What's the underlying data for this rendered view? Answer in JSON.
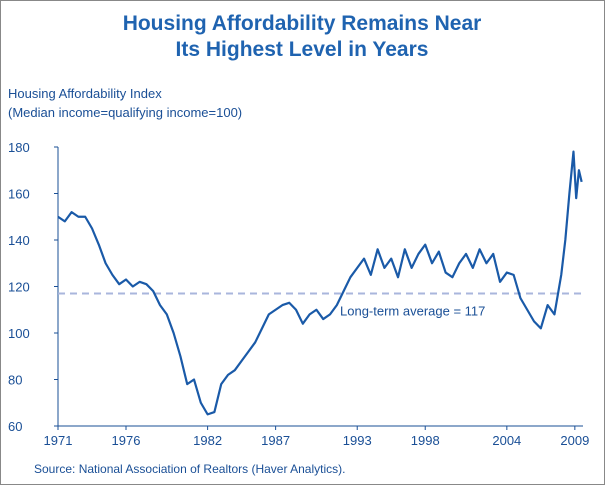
{
  "chart_data": {
    "type": "line",
    "title": [
      "Housing Affordability Remains Near",
      "Its Highest Level in Years"
    ],
    "ylabel": [
      "Housing Affordability Index",
      "(Median income=qualifying income=100)"
    ],
    "source": "Source: National Association of Realtors (Haver Analytics).",
    "annotation": {
      "text": "Long-term average = 117",
      "value": 117,
      "color": "#a9b6dc"
    },
    "x": [
      1971,
      1971.5,
      1972,
      1972.5,
      1973,
      1973.5,
      1974,
      1974.5,
      1975,
      1975.5,
      1976,
      1976.5,
      1977,
      1977.5,
      1978,
      1978.5,
      1979,
      1979.5,
      1980,
      1980.5,
      1981,
      1981.5,
      1982,
      1982.5,
      1983,
      1983.5,
      1984,
      1984.5,
      1985,
      1985.5,
      1986,
      1986.5,
      1987,
      1987.5,
      1988,
      1988.5,
      1989,
      1989.5,
      1990,
      1990.5,
      1991,
      1991.5,
      1992,
      1992.5,
      1993,
      1993.5,
      1994,
      1994.5,
      1995,
      1995.5,
      1996,
      1996.5,
      1997,
      1997.5,
      1998,
      1998.5,
      1999,
      1999.5,
      2000,
      2000.5,
      2001,
      2001.5,
      2002,
      2002.5,
      2003,
      2003.5,
      2004,
      2004.5,
      2005,
      2005.5,
      2006,
      2006.5,
      2007,
      2007.5,
      2008,
      2008.3,
      2008.6,
      2008.9,
      2009.1,
      2009.3,
      2009.5
    ],
    "series": [
      {
        "name": "Housing Affordability Index",
        "color": "#1a5aa8",
        "values": [
          150,
          148,
          152,
          150,
          150,
          145,
          138,
          130,
          125,
          121,
          123,
          120,
          122,
          121,
          118,
          112,
          108,
          100,
          90,
          78,
          80,
          70,
          65,
          66,
          78,
          82,
          84,
          88,
          92,
          96,
          102,
          108,
          110,
          112,
          113,
          110,
          104,
          108,
          110,
          106,
          108,
          112,
          118,
          124,
          128,
          132,
          125,
          136,
          128,
          132,
          124,
          136,
          128,
          134,
          138,
          130,
          135,
          126,
          124,
          130,
          134,
          128,
          136,
          130,
          134,
          122,
          126,
          125,
          115,
          110,
          105,
          102,
          112,
          108,
          125,
          140,
          160,
          178,
          158,
          170,
          165
        ]
      }
    ],
    "xlim": [
      1971,
      2009.6
    ],
    "xticks": [
      1971,
      1976,
      1982,
      1987,
      1993,
      1998,
      2004,
      2009
    ],
    "ylim": [
      60,
      180
    ],
    "yticks": [
      60,
      80,
      100,
      120,
      140,
      160,
      180
    ]
  }
}
